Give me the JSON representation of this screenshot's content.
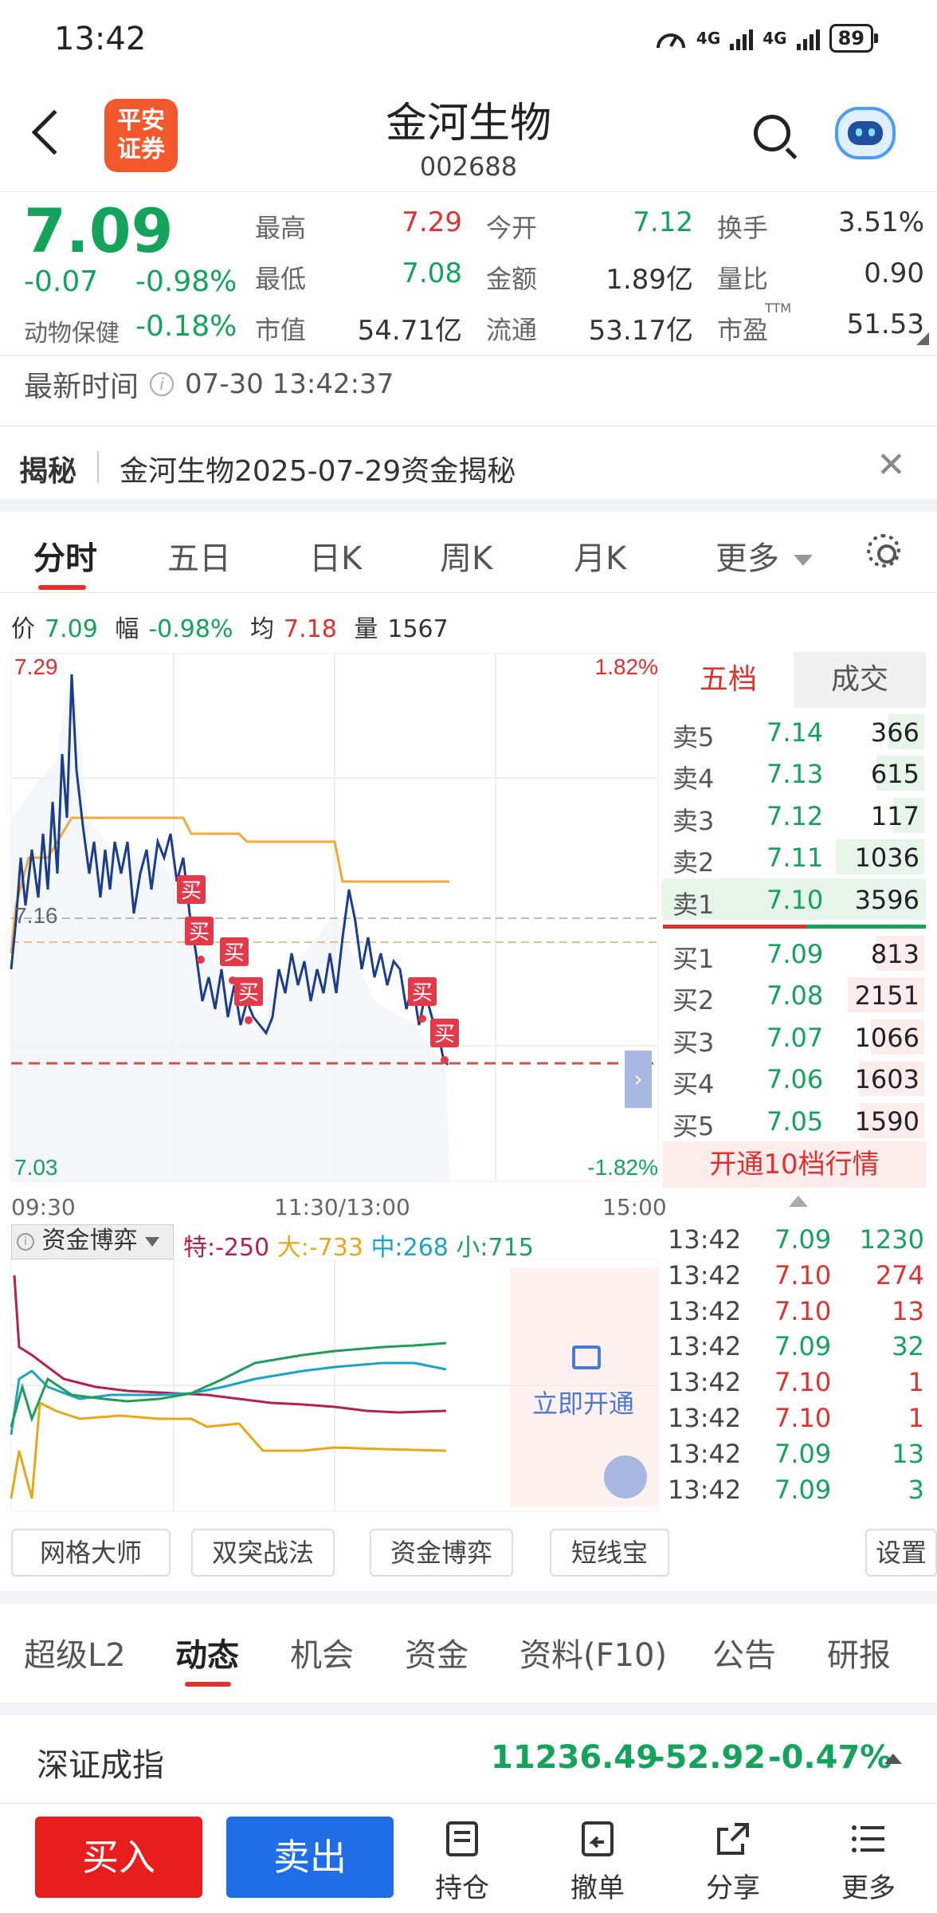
{
  "status_bar": {
    "time": "13:42",
    "net1": "4G",
    "net2": "4G",
    "battery": "89"
  },
  "header": {
    "logo_line1": "平安",
    "logo_line2": "证券",
    "title": "金河生物",
    "code": "002688"
  },
  "quote": {
    "price": "7.09",
    "change": "-0.07",
    "change_pct": "-0.98%",
    "sector_name": "动物保健",
    "sector_pct": "-0.18%",
    "fields": [
      {
        "label": "最高",
        "value": "7.29"
      },
      {
        "label": "最低",
        "value": "7.08"
      },
      {
        "label": "市值",
        "value": "54.71亿"
      },
      {
        "label": "今开",
        "value": "7.12"
      },
      {
        "label": "金额",
        "value": "1.89亿"
      },
      {
        "label": "流通",
        "value": "53.17亿"
      },
      {
        "label": "换手",
        "value": "3.51%"
      },
      {
        "label": "量比",
        "value": "0.90"
      },
      {
        "label": "市盈",
        "value": "51.53"
      }
    ],
    "pe_sup": "TTM"
  },
  "latest": {
    "label": "最新时间",
    "value": "07-30 13:42:37"
  },
  "reveal": {
    "tag": "揭秘",
    "text": "金河生物2025-07-29资金揭秘",
    "close": "✕"
  },
  "chart_tabs": [
    "分时",
    "五日",
    "日K",
    "周K",
    "月K",
    "更多"
  ],
  "info_line": {
    "price_label": "价",
    "price": "7.09",
    "amp_label": "幅",
    "amp": "-0.98%",
    "avg_label": "均",
    "avg": "7.18",
    "vol_label": "量",
    "vol": "1567"
  },
  "intraday": {
    "y_high": "7.29",
    "y_low": "7.03",
    "pct_high": "1.82%",
    "pct_low": "-1.82%",
    "mid_label": "7.16",
    "x_start": "09:30",
    "x_mid": "11:30/13:00",
    "x_end": "15:00",
    "buy_mark": "买"
  },
  "order_book": {
    "tabs": [
      "五档",
      "成交"
    ],
    "asks": [
      {
        "label": "卖5",
        "price": "7.14",
        "vol": "366",
        "w": 0.05
      },
      {
        "label": "卖4",
        "price": "7.13",
        "vol": "615",
        "w": 0.1
      },
      {
        "label": "卖3",
        "price": "7.12",
        "vol": "117",
        "w": 0.03
      },
      {
        "label": "卖2",
        "price": "7.11",
        "vol": "1036",
        "w": 0.27
      },
      {
        "label": "卖1",
        "price": "7.10",
        "vol": "3596",
        "w": 1.0
      }
    ],
    "bids": [
      {
        "label": "买1",
        "price": "7.09",
        "vol": "813",
        "w": 0.26
      },
      {
        "label": "买2",
        "price": "7.08",
        "vol": "2151",
        "w": 0.7
      },
      {
        "label": "买3",
        "price": "7.07",
        "vol": "1066",
        "w": 0.34
      },
      {
        "label": "买4",
        "price": "7.06",
        "vol": "1603",
        "w": 0.52
      },
      {
        "label": "买5",
        "price": "7.05",
        "vol": "1590",
        "w": 0.51
      }
    ],
    "upgrade": "开通10档行情"
  },
  "ticks": [
    {
      "time": "13:42",
      "price": "7.09",
      "vol": "1230",
      "dir": "green"
    },
    {
      "time": "13:42",
      "price": "7.10",
      "vol": "274",
      "dir": "red"
    },
    {
      "time": "13:42",
      "price": "7.10",
      "vol": "13",
      "dir": "red"
    },
    {
      "time": "13:42",
      "price": "7.09",
      "vol": "32",
      "dir": "green"
    },
    {
      "time": "13:42",
      "price": "7.10",
      "vol": "1",
      "dir": "red"
    },
    {
      "time": "13:42",
      "price": "7.10",
      "vol": "1",
      "dir": "red"
    },
    {
      "time": "13:42",
      "price": "7.09",
      "vol": "13",
      "dir": "green"
    },
    {
      "time": "13:42",
      "price": "7.09",
      "vol": "3",
      "dir": "green"
    }
  ],
  "fund_game": {
    "selector": "资金博弈",
    "special": "特:-250",
    "large": "大:-733",
    "medium": "中:268",
    "small": "小:715",
    "unlock": "立即开通",
    "colors": {
      "special": "#b5204f",
      "large": "#e6a817",
      "medium": "#1aa3c8",
      "small": "#1f9e5a"
    }
  },
  "tools": [
    "网格大师",
    "双突战法",
    "资金博弈",
    "短线宝",
    "设置"
  ],
  "bottom_tabs": [
    "超级L2",
    "动态",
    "机会",
    "资金",
    "资料(F10)",
    "公告",
    "研报"
  ],
  "index": {
    "name": "深证成指",
    "value": "11236.49",
    "change": "-52.92",
    "pct": "-0.47%"
  },
  "actions": {
    "buy": "买入",
    "sell": "卖出",
    "items": [
      "持仓",
      "撤单",
      "分享",
      "更多"
    ]
  }
}
